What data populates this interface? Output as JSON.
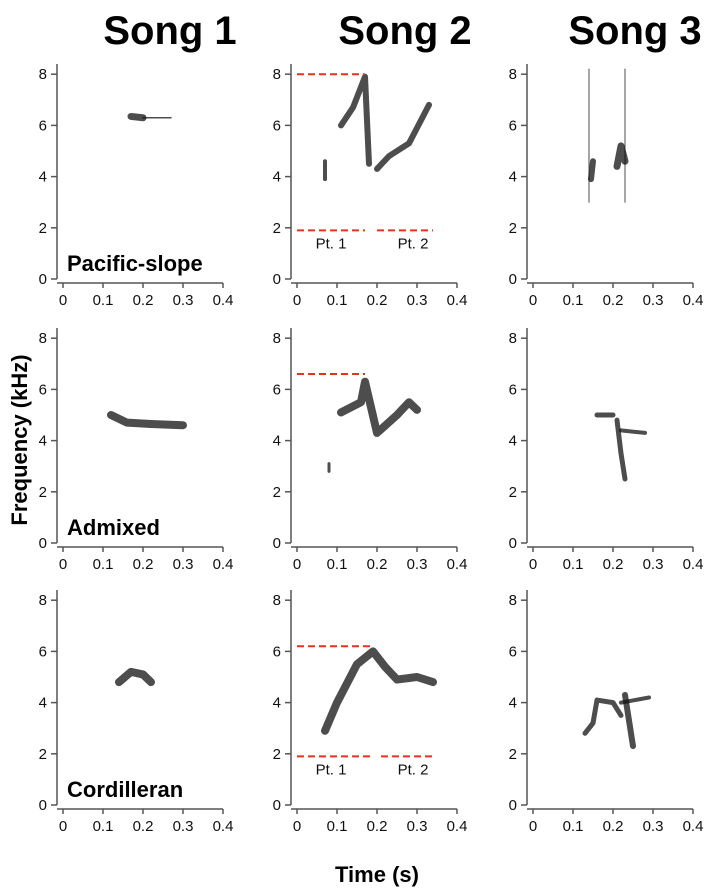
{
  "columns": [
    "Song 1",
    "Song 2",
    "Song 3"
  ],
  "y_label": "Frequency (kHz)",
  "x_label": "Time (s)",
  "xlim": [
    0,
    0.4
  ],
  "xticks": [
    0,
    0.1,
    0.2,
    0.3,
    0.4
  ],
  "ylim": [
    0,
    8.4
  ],
  "yticks": [
    0,
    2,
    4,
    6,
    8
  ],
  "rows": [
    {
      "label": "Pacific-slope",
      "song2_parts": [
        "Pt. 1",
        "Pt. 2"
      ],
      "song2_lines": [
        {
          "freq": 8,
          "start": 0,
          "end": 0.17
        },
        {
          "freq": 1.9,
          "start": 0,
          "end": 0.17
        },
        {
          "freq": 1.9,
          "start": 0.2,
          "end": 0.34
        }
      ]
    },
    {
      "label": "Admixed",
      "song2_lines": [
        {
          "freq": 6.6,
          "start": 0,
          "end": 0.17
        }
      ]
    },
    {
      "label": "Cordilleran",
      "song2_parts": [
        "Pt. 1",
        "Pt. 2"
      ],
      "song2_lines": [
        {
          "freq": 6.2,
          "start": 0,
          "end": 0.19
        },
        {
          "freq": 1.9,
          "start": 0,
          "end": 0.19
        },
        {
          "freq": 1.9,
          "start": 0.21,
          "end": 0.34
        }
      ]
    }
  ]
}
